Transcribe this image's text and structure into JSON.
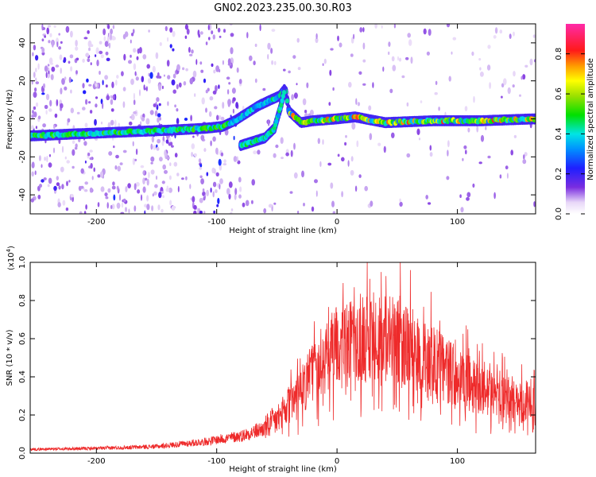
{
  "title": "GN02.2023.235.00.30.R03",
  "chart_data": [
    {
      "type": "heatmap",
      "xlabel": "Height of straight line (km)",
      "ylabel": "Frequency (Hz)",
      "xlim": [
        -255,
        165
      ],
      "ylim": [
        -50,
        50
      ],
      "xticks": [
        -200,
        -100,
        0,
        100
      ],
      "yticks": [
        -40,
        -20,
        0,
        20,
        40
      ],
      "colorbar": {
        "label": "Normalized spectral amplitude",
        "range": [
          0.0,
          0.95
        ],
        "ticks": [
          "0.0",
          "0.2",
          "0.4",
          "0.6",
          "0.8"
        ],
        "tick_values": [
          0.0,
          0.2,
          0.4,
          0.6,
          0.8
        ]
      },
      "ridge": [
        {
          "x": -255,
          "y": -9
        },
        {
          "x": -220,
          "y": -8
        },
        {
          "x": -180,
          "y": -7
        },
        {
          "x": -140,
          "y": -6
        },
        {
          "x": -110,
          "y": -5
        },
        {
          "x": -95,
          "y": -4
        },
        {
          "x": -85,
          "y": -1
        },
        {
          "x": -75,
          "y": 3
        },
        {
          "x": -65,
          "y": 7
        },
        {
          "x": -55,
          "y": 10
        },
        {
          "x": -48,
          "y": 12
        },
        {
          "x": -43,
          "y": 16
        },
        {
          "x": -40,
          "y": 4
        },
        {
          "x": -30,
          "y": -2
        },
        {
          "x": -20,
          "y": -1
        },
        {
          "x": 0,
          "y": 0
        },
        {
          "x": 15,
          "y": 1
        },
        {
          "x": 40,
          "y": -2
        },
        {
          "x": 80,
          "y": -1
        },
        {
          "x": 120,
          "y": -1
        },
        {
          "x": 165,
          "y": 0
        }
      ],
      "branch": [
        {
          "x": -80,
          "y": -14
        },
        {
          "x": -70,
          "y": -12
        },
        {
          "x": -60,
          "y": -10
        },
        {
          "x": -52,
          "y": -5
        },
        {
          "x": -47,
          "y": 6
        },
        {
          "x": -44,
          "y": 14
        }
      ]
    },
    {
      "type": "line",
      "xlabel": "Height of straight line (km)",
      "ylabel": "SNR (10 * v/v)",
      "y_multiplier": "(x10",
      "y_multiplier_exp": "4",
      "y_multiplier_close": ")",
      "xlim": [
        -255,
        165
      ],
      "ylim": [
        0,
        1.0
      ],
      "xticks": [
        -200,
        -100,
        0,
        100
      ],
      "yticks": [
        "0.0",
        "0.2",
        "0.4",
        "0.6",
        "0.8",
        "1.0"
      ],
      "ytick_values": [
        0,
        0.2,
        0.4,
        0.6,
        0.8,
        1.0
      ],
      "series": [
        {
          "color": "#ee2a2a",
          "envelope": [
            {
              "x": -255,
              "y": 0.02
            },
            {
              "x": -200,
              "y": 0.025
            },
            {
              "x": -150,
              "y": 0.035
            },
            {
              "x": -110,
              "y": 0.06
            },
            {
              "x": -80,
              "y": 0.09
            },
            {
              "x": -60,
              "y": 0.13
            },
            {
              "x": -45,
              "y": 0.2
            },
            {
              "x": -30,
              "y": 0.32
            },
            {
              "x": -20,
              "y": 0.42
            },
            {
              "x": -10,
              "y": 0.5
            },
            {
              "x": 0,
              "y": 0.55
            },
            {
              "x": 20,
              "y": 0.6
            },
            {
              "x": 40,
              "y": 0.6
            },
            {
              "x": 60,
              "y": 0.55
            },
            {
              "x": 80,
              "y": 0.48
            },
            {
              "x": 100,
              "y": 0.4
            },
            {
              "x": 120,
              "y": 0.33
            },
            {
              "x": 140,
              "y": 0.29
            },
            {
              "x": 165,
              "y": 0.24
            }
          ]
        }
      ]
    }
  ]
}
